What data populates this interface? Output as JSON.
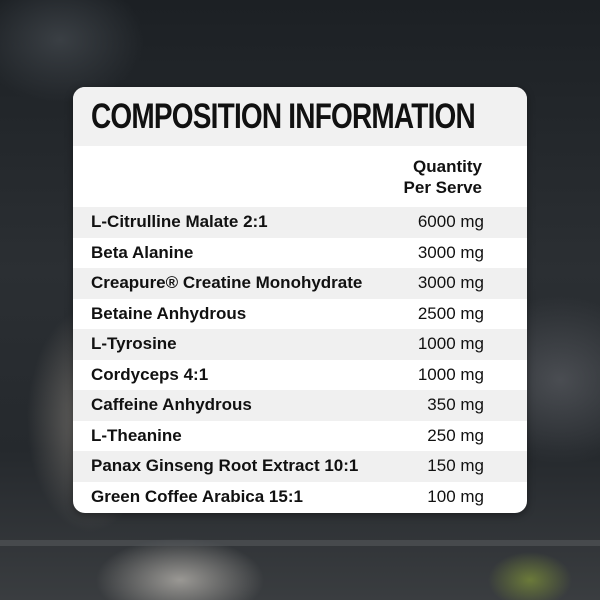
{
  "title": "COMPOSITION INFORMATION",
  "column_header": {
    "line1": "Quantity",
    "line2": "Per Serve"
  },
  "rows": [
    {
      "name": "L-Citrulline Malate 2:1",
      "quantity": "6000 mg"
    },
    {
      "name": "Beta Alanine",
      "quantity": "3000 mg"
    },
    {
      "name": "Creapure® Creatine Monohydrate",
      "quantity": "3000 mg"
    },
    {
      "name": "Betaine Anhydrous",
      "quantity": "2500 mg"
    },
    {
      "name": "L-Tyrosine",
      "quantity": "1000 mg"
    },
    {
      "name": "Cordyceps 4:1",
      "quantity": "1000 mg"
    },
    {
      "name": "Caffeine Anhydrous",
      "quantity": "350 mg"
    },
    {
      "name": "L-Theanine",
      "quantity": "250 mg"
    },
    {
      "name": "Panax Ginseng Root Extract 10:1",
      "quantity": "150 mg"
    },
    {
      "name": "Green Coffee Arabica 15:1",
      "quantity": "100 mg"
    }
  ]
}
